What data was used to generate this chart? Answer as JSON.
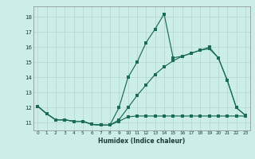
{
  "title": "",
  "xlabel": "Humidex (Indice chaleur)",
  "background_color": "#cceee8",
  "grid_color": "#b8d8d0",
  "line_color": "#1a6b5a",
  "xlim": [
    -0.5,
    23.5
  ],
  "ylim": [
    10.5,
    18.7
  ],
  "xticks": [
    0,
    1,
    2,
    3,
    4,
    5,
    6,
    7,
    8,
    9,
    10,
    11,
    12,
    13,
    14,
    15,
    16,
    17,
    18,
    19,
    20,
    21,
    22,
    23
  ],
  "yticks": [
    11,
    12,
    13,
    14,
    15,
    16,
    17,
    18
  ],
  "line1_x": [
    0,
    1,
    2,
    3,
    4,
    5,
    6,
    7,
    8,
    9,
    10,
    11,
    12,
    13,
    14,
    15,
    16,
    17,
    18,
    19,
    20,
    21,
    22,
    23
  ],
  "line1_y": [
    12.1,
    11.6,
    11.2,
    11.2,
    11.1,
    11.1,
    10.9,
    10.85,
    10.85,
    11.1,
    11.4,
    11.45,
    11.45,
    11.45,
    11.45,
    11.45,
    11.45,
    11.45,
    11.45,
    11.45,
    11.45,
    11.45,
    11.45,
    11.45
  ],
  "line2_x": [
    0,
    1,
    2,
    3,
    4,
    5,
    6,
    7,
    8,
    9,
    10,
    11,
    12,
    13,
    14,
    15,
    16,
    17,
    18,
    19,
    20,
    21,
    22,
    23
  ],
  "line2_y": [
    12.1,
    11.6,
    11.2,
    11.2,
    11.1,
    11.1,
    10.9,
    10.85,
    10.85,
    12.0,
    14.0,
    15.0,
    16.3,
    17.2,
    18.2,
    15.3,
    15.4,
    15.6,
    15.8,
    15.9,
    15.3,
    13.8,
    12.0,
    11.5
  ],
  "line3_x": [
    0,
    1,
    2,
    3,
    4,
    5,
    6,
    7,
    8,
    9,
    10,
    11,
    12,
    13,
    14,
    15,
    16,
    17,
    18,
    19,
    20,
    21,
    22,
    23
  ],
  "line3_y": [
    12.1,
    11.6,
    11.2,
    11.2,
    11.1,
    11.1,
    10.9,
    10.85,
    10.85,
    11.2,
    12.0,
    12.8,
    13.5,
    14.2,
    14.7,
    15.1,
    15.4,
    15.6,
    15.8,
    16.0,
    15.3,
    13.8,
    12.0,
    11.5
  ]
}
